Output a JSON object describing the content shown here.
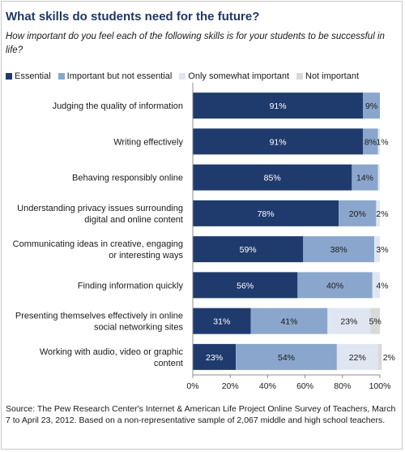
{
  "title": "What skills do students need for the future?",
  "subtitle": "How important do you feel each of the following skills is for your students to be successful in life?",
  "source": "Source: The Pew Research Center's Internet & American Life Project Online Survey of Teachers, March 7 to April 23, 2012.  Based on a non-representative sample of 2,067 middle and high school teachers.",
  "chart_data": {
    "type": "bar",
    "orientation": "horizontal-stacked-100",
    "categories": [
      [
        "Judging the quality of information"
      ],
      [
        "Writing effectively"
      ],
      [
        "Behaving responsibly online"
      ],
      [
        "Understanding privacy issues surrounding",
        "digital and online content"
      ],
      [
        "Communicating ideas in creative, engaging",
        "or interesting ways"
      ],
      [
        "Finding information quickly"
      ],
      [
        "Presenting themselves effectively in online",
        "social networking sites"
      ],
      [
        "Working with audio, video or graphic",
        "content"
      ]
    ],
    "series": [
      {
        "name": "Essential",
        "color": "#1f3b6e",
        "values": [
          91,
          91,
          85,
          78,
          59,
          56,
          31,
          23
        ],
        "labels": [
          "91%",
          "91%",
          "85%",
          "78%",
          "59%",
          "56%",
          "31%",
          "23%"
        ]
      },
      {
        "name": "Important but not essential",
        "color": "#8aa6cc",
        "values": [
          9,
          8,
          14,
          20,
          38,
          40,
          41,
          54
        ],
        "labels": [
          "9%",
          "8%",
          "14%",
          "20%",
          "38%",
          "40%",
          "41%",
          "54%"
        ]
      },
      {
        "name": "Only somewhat important",
        "color": "#dfe6f1",
        "values": [
          0,
          1,
          1,
          2,
          3,
          4,
          23,
          22
        ],
        "labels": [
          "",
          "1%",
          "",
          "2%",
          "3%",
          "4%",
          "23%",
          "22%"
        ]
      },
      {
        "name": "Not important",
        "color": "#d9d9d9",
        "values": [
          0,
          0,
          0,
          0,
          0,
          0,
          5,
          2
        ],
        "labels": [
          "",
          "",
          "",
          "",
          "",
          "",
          "5%",
          "2%"
        ]
      }
    ],
    "xlim": [
      0,
      100
    ],
    "xticks": [
      "0%",
      "20%",
      "40%",
      "60%",
      "80%",
      "100%"
    ],
    "legend_position": "top",
    "grid": false
  }
}
